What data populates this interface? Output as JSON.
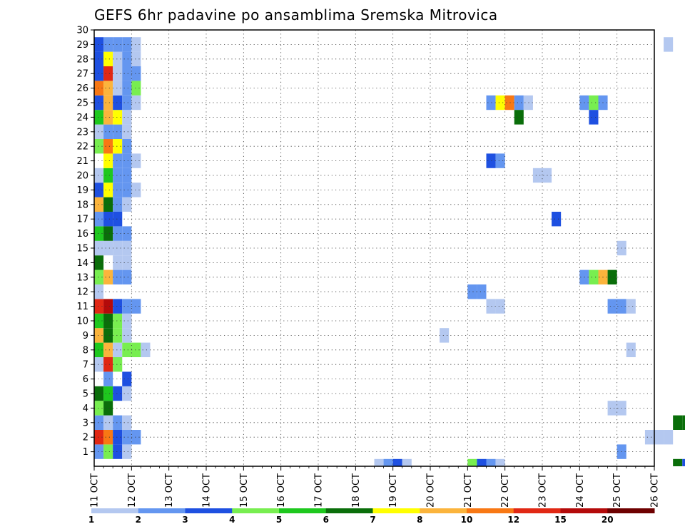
{
  "chart_data": {
    "type": "heatmap",
    "title": "GEFS 6hr padavine po ansamblima Sremska Mitrovica",
    "x_tick_labels": [
      "11 OCT",
      "12 OCT",
      "13 OCT",
      "14 OCT",
      "15 OCT",
      "16 OCT",
      "17 OCT",
      "18 OCT",
      "19 OCT",
      "20 OCT",
      "21 OCT",
      "22 OCT",
      "23 OCT",
      "24 OCT",
      "25 OCT",
      "26 OCT"
    ],
    "y_tick_labels": [
      "1",
      "2",
      "3",
      "4",
      "5",
      "6",
      "7",
      "8",
      "9",
      "10",
      "11",
      "12",
      "13",
      "14",
      "15",
      "16",
      "17",
      "18",
      "19",
      "20",
      "21",
      "22",
      "23",
      "24",
      "25",
      "26",
      "27",
      "28",
      "29",
      "30"
    ],
    "xlim_days": [
      11,
      26
    ],
    "ylim_members": [
      0,
      30
    ],
    "steps_per_day": 4,
    "grid": "dotted",
    "colorbar": {
      "labels": [
        "1",
        "2",
        "3",
        "4",
        "5",
        "6",
        "7",
        "8",
        "10",
        "12",
        "15",
        "20"
      ],
      "colors": [
        "#b4c8f0",
        "#6496f0",
        "#1e50e1",
        "#78ee50",
        "#1ec81e",
        "#0a6e0a",
        "#ffff00",
        "#fbb43c",
        "#f87814",
        "#e12814",
        "#b40a0a",
        "#6e0000"
      ]
    },
    "cells": [
      [
        0,
        0,
        2
      ],
      [
        1,
        0,
        4
      ],
      [
        2,
        0,
        3
      ],
      [
        3,
        0,
        1
      ],
      [
        0,
        1,
        10
      ],
      [
        1,
        1,
        9
      ],
      [
        2,
        1,
        3
      ],
      [
        3,
        1,
        2
      ],
      [
        4,
        1,
        2
      ],
      [
        0,
        2,
        2
      ],
      [
        1,
        2,
        1
      ],
      [
        2,
        2,
        2
      ],
      [
        3,
        2,
        1
      ],
      [
        0,
        3,
        4
      ],
      [
        1,
        3,
        6
      ],
      [
        0,
        4,
        6
      ],
      [
        1,
        4,
        5
      ],
      [
        2,
        4,
        3
      ],
      [
        3,
        4,
        1
      ],
      [
        1,
        5,
        2
      ],
      [
        3,
        5,
        3
      ],
      [
        0,
        6,
        1
      ],
      [
        1,
        6,
        10
      ],
      [
        2,
        6,
        4
      ],
      [
        0,
        7,
        5
      ],
      [
        1,
        7,
        8
      ],
      [
        2,
        7,
        1
      ],
      [
        3,
        7,
        4
      ],
      [
        4,
        7,
        4
      ],
      [
        5,
        7,
        1
      ],
      [
        0,
        8,
        8
      ],
      [
        1,
        8,
        6
      ],
      [
        2,
        8,
        4
      ],
      [
        3,
        8,
        1
      ],
      [
        0,
        9,
        5
      ],
      [
        1,
        9,
        6
      ],
      [
        2,
        9,
        4
      ],
      [
        3,
        9,
        1
      ],
      [
        0,
        10,
        10
      ],
      [
        1,
        10,
        11
      ],
      [
        2,
        10,
        3
      ],
      [
        3,
        10,
        2
      ],
      [
        4,
        10,
        2
      ],
      [
        0,
        11,
        1
      ],
      [
        0,
        12,
        4
      ],
      [
        1,
        12,
        8
      ],
      [
        2,
        12,
        2
      ],
      [
        3,
        12,
        2
      ],
      [
        0,
        13,
        6
      ],
      [
        2,
        13,
        1
      ],
      [
        3,
        13,
        1
      ],
      [
        0,
        14,
        1
      ],
      [
        1,
        14,
        1
      ],
      [
        2,
        14,
        1
      ],
      [
        3,
        14,
        1
      ],
      [
        0,
        15,
        5
      ],
      [
        1,
        15,
        6
      ],
      [
        2,
        15,
        2
      ],
      [
        3,
        15,
        2
      ],
      [
        0,
        16,
        2
      ],
      [
        1,
        16,
        3
      ],
      [
        2,
        16,
        3
      ],
      [
        0,
        17,
        8
      ],
      [
        1,
        17,
        6
      ],
      [
        2,
        17,
        2
      ],
      [
        3,
        17,
        1
      ],
      [
        0,
        18,
        3
      ],
      [
        1,
        18,
        7
      ],
      [
        2,
        18,
        2
      ],
      [
        3,
        18,
        2
      ],
      [
        4,
        18,
        1
      ],
      [
        0,
        19,
        1
      ],
      [
        1,
        19,
        5
      ],
      [
        2,
        19,
        2
      ],
      [
        3,
        19,
        2
      ],
      [
        1,
        20,
        7
      ],
      [
        2,
        20,
        2
      ],
      [
        3,
        20,
        2
      ],
      [
        4,
        20,
        1
      ],
      [
        0,
        21,
        4
      ],
      [
        1,
        21,
        9
      ],
      [
        2,
        21,
        7
      ],
      [
        3,
        21,
        2
      ],
      [
        0,
        22,
        1
      ],
      [
        1,
        22,
        2
      ],
      [
        2,
        22,
        2
      ],
      [
        3,
        22,
        1
      ],
      [
        0,
        23,
        5
      ],
      [
        1,
        23,
        8
      ],
      [
        2,
        23,
        7
      ],
      [
        3,
        23,
        1
      ],
      [
        0,
        24,
        3
      ],
      [
        1,
        24,
        8
      ],
      [
        2,
        24,
        3
      ],
      [
        3,
        24,
        2
      ],
      [
        4,
        24,
        1
      ],
      [
        0,
        25,
        9
      ],
      [
        1,
        25,
        8
      ],
      [
        2,
        25,
        1
      ],
      [
        3,
        25,
        2
      ],
      [
        4,
        25,
        4
      ],
      [
        0,
        26,
        3
      ],
      [
        1,
        26,
        10
      ],
      [
        2,
        26,
        1
      ],
      [
        3,
        26,
        2
      ],
      [
        4,
        26,
        2
      ],
      [
        0,
        27,
        3
      ],
      [
        1,
        27,
        7
      ],
      [
        2,
        27,
        1
      ],
      [
        3,
        27,
        2
      ],
      [
        4,
        27,
        1
      ],
      [
        0,
        28,
        3
      ],
      [
        1,
        28,
        2
      ],
      [
        2,
        28,
        2
      ],
      [
        3,
        28,
        2
      ],
      [
        4,
        28,
        1
      ],
      [
        30,
        -1,
        1
      ],
      [
        31,
        -1,
        2
      ],
      [
        32,
        -1,
        3
      ],
      [
        33,
        -1,
        1
      ],
      [
        37,
        8,
        1
      ],
      [
        40,
        -1,
        4
      ],
      [
        41,
        -1,
        3
      ],
      [
        42,
        -1,
        2
      ],
      [
        43,
        -1,
        1
      ],
      [
        42,
        10,
        1
      ],
      [
        43,
        10,
        1
      ],
      [
        40,
        11,
        2
      ],
      [
        41,
        11,
        2
      ],
      [
        42,
        20,
        3
      ],
      [
        43,
        20,
        2
      ],
      [
        42,
        24,
        2
      ],
      [
        43,
        24,
        7
      ],
      [
        44,
        24,
        9
      ],
      [
        45,
        24,
        2
      ],
      [
        46,
        24,
        1
      ],
      [
        45,
        23,
        6
      ],
      [
        47,
        19,
        1
      ],
      [
        48,
        19,
        1
      ],
      [
        49,
        16,
        3
      ],
      [
        52,
        12,
        2
      ],
      [
        53,
        12,
        4
      ],
      [
        54,
        12,
        8
      ],
      [
        55,
        12,
        6
      ],
      [
        52,
        24,
        2
      ],
      [
        53,
        24,
        4
      ],
      [
        54,
        24,
        2
      ],
      [
        53,
        23,
        3
      ],
      [
        55,
        10,
        2
      ],
      [
        56,
        10,
        2
      ],
      [
        57,
        10,
        1
      ],
      [
        55,
        3,
        1
      ],
      [
        56,
        3,
        1
      ],
      [
        56,
        0,
        2
      ],
      [
        57,
        7,
        1
      ],
      [
        59,
        1,
        1
      ],
      [
        60,
        1,
        1
      ],
      [
        61,
        1,
        1
      ],
      [
        56,
        14,
        1
      ],
      [
        61,
        28,
        1
      ],
      [
        62,
        -1,
        6
      ],
      [
        63,
        -1,
        3
      ],
      [
        62,
        2,
        6
      ],
      [
        63,
        2,
        6
      ],
      [
        64,
        2,
        3
      ],
      [
        65,
        2,
        5
      ],
      [
        66,
        2,
        1
      ],
      [
        68,
        10,
        4
      ],
      [
        69,
        10,
        1
      ],
      [
        69,
        -1,
        2
      ],
      [
        70,
        19,
        1
      ],
      [
        70,
        18,
        3
      ],
      [
        71,
        18,
        3
      ],
      [
        71,
        16,
        4
      ],
      [
        71,
        20,
        2
      ],
      [
        72,
        26,
        1
      ],
      [
        72,
        5,
        2
      ],
      [
        73,
        5,
        1
      ],
      [
        73,
        14,
        3
      ],
      [
        76,
        9,
        3
      ],
      [
        77,
        9,
        3
      ],
      [
        78,
        9,
        4
      ],
      [
        79,
        9,
        1
      ],
      [
        74,
        3,
        1
      ],
      [
        75,
        3,
        4
      ],
      [
        74,
        11,
        1
      ],
      [
        75,
        11,
        2
      ],
      [
        76,
        11,
        1
      ],
      [
        75,
        2,
        4
      ],
      [
        76,
        -1,
        3
      ],
      [
        77,
        2,
        3
      ],
      [
        78,
        2,
        1
      ],
      [
        76,
        4,
        1
      ],
      [
        77,
        3,
        5
      ],
      [
        78,
        3,
        6
      ],
      [
        78,
        2,
        4
      ],
      [
        79,
        1,
        1
      ],
      [
        80,
        1,
        1
      ],
      [
        79,
        0,
        3
      ],
      [
        80,
        0,
        2
      ],
      [
        80,
        4,
        1
      ],
      [
        81,
        4,
        2
      ],
      [
        80,
        8,
        7
      ],
      [
        81,
        8,
        9
      ],
      [
        81,
        10,
        3
      ],
      [
        82,
        10,
        2
      ],
      [
        83,
        10,
        3
      ],
      [
        84,
        10,
        4
      ],
      [
        85,
        10,
        5
      ],
      [
        81,
        5,
        1
      ],
      [
        82,
        3,
        3
      ],
      [
        83,
        3,
        1
      ],
      [
        84,
        3,
        1
      ],
      [
        84,
        25,
        1
      ],
      [
        85,
        25,
        4
      ],
      [
        84,
        6,
        1
      ],
      [
        85,
        6,
        1
      ],
      [
        84,
        2,
        1
      ],
      [
        85,
        -1,
        11
      ]
    ]
  }
}
